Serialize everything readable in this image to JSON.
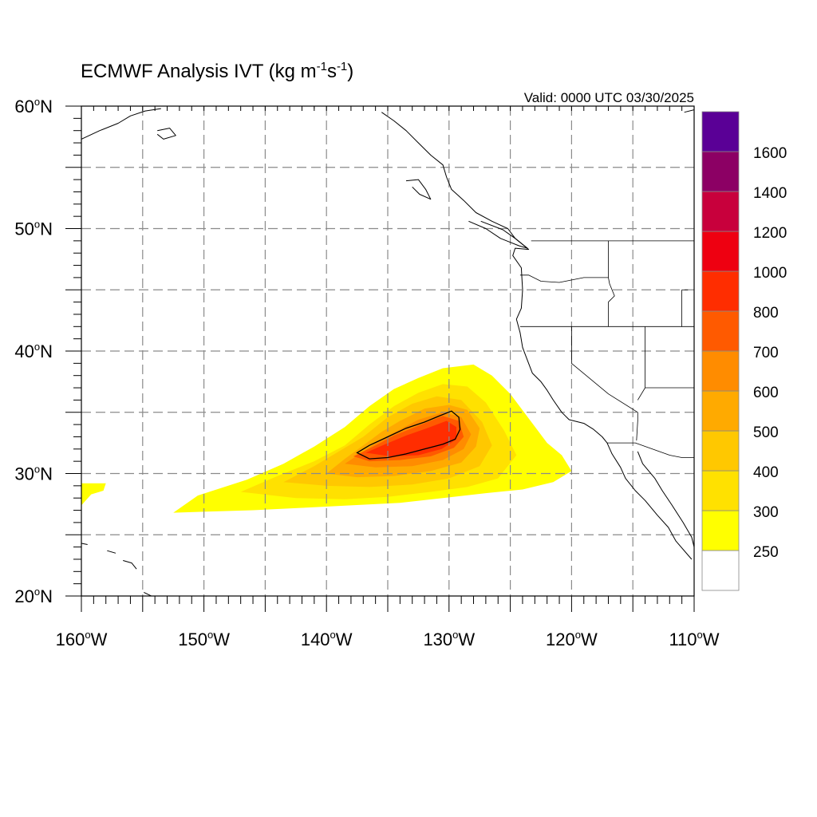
{
  "title": {
    "main": "ECMWF Analysis IVT (kg m",
    "sup1": "-1",
    "mid": "s",
    "sup2": "-1",
    "end": ")"
  },
  "valid_label": "Valid: 0000 UTC 03/30/2025",
  "colorbar": {
    "colors": [
      "#ffffff",
      "#ffff00",
      "#ffe100",
      "#ffc800",
      "#ffaa00",
      "#ff8c00",
      "#ff5a00",
      "#ff2d00",
      "#ee0011",
      "#c8003c",
      "#8c0064",
      "#5a0096"
    ],
    "labels": [
      "250",
      "300",
      "400",
      "500",
      "600",
      "700",
      "800",
      "1000",
      "1200",
      "1400",
      "1600"
    ]
  },
  "chart_data": {
    "type": "heatmap",
    "title": "ECMWF Analysis IVT (kg m-1 s-1)",
    "valid": "Valid: 0000 UTC 03/30/2025",
    "lon_range": [
      -160,
      -110
    ],
    "lat_range": [
      20,
      60
    ],
    "x_ticks": [
      -160,
      -150,
      -140,
      -130,
      -120,
      -110
    ],
    "x_tick_labels": [
      "160",
      "150",
      "140",
      "130",
      "120",
      "110"
    ],
    "x_suffix": "W",
    "y_ticks": [
      20,
      30,
      40,
      50,
      60
    ],
    "y_tick_labels": [
      "20",
      "30",
      "40",
      "50",
      "60"
    ],
    "y_suffix": "N",
    "grid": true,
    "grid_lons": [
      -155,
      -150,
      -145,
      -140,
      -135,
      -130,
      -125,
      -120,
      -115
    ],
    "grid_lats": [
      25,
      30,
      35,
      40,
      45,
      50,
      55
    ],
    "contour_levels": [
      250,
      300,
      400,
      500,
      600,
      700,
      800,
      1000,
      1200,
      1400,
      1600
    ],
    "ivt_field": [
      {
        "level": 250,
        "polygon": [
          [
            -152.5,
            26.8
          ],
          [
            -150.5,
            28.2
          ],
          [
            -146.5,
            29.5
          ],
          [
            -143.5,
            30.8
          ],
          [
            -141,
            32.2
          ],
          [
            -138.5,
            33.8
          ],
          [
            -136.5,
            35.5
          ],
          [
            -134.5,
            36.9
          ],
          [
            -132.5,
            37.8
          ],
          [
            -130.5,
            38.6
          ],
          [
            -128,
            38.9
          ],
          [
            -126.5,
            38.0
          ],
          [
            -125,
            36.5
          ],
          [
            -123.5,
            34.5
          ],
          [
            -122,
            32.5
          ],
          [
            -120.8,
            31.5
          ],
          [
            -120,
            30.2
          ],
          [
            -121.5,
            29.3
          ],
          [
            -124,
            28.7
          ],
          [
            -127,
            28.4
          ],
          [
            -130.5,
            28.0
          ],
          [
            -134,
            27.6
          ],
          [
            -138,
            27.4
          ],
          [
            -142,
            27.2
          ],
          [
            -146,
            27.0
          ],
          [
            -149.5,
            26.9
          ]
        ]
      },
      {
        "level": 250,
        "polygon": [
          [
            -160,
            29.2
          ],
          [
            -158,
            29.2
          ],
          [
            -158.2,
            28.6
          ],
          [
            -159.2,
            28.3
          ],
          [
            -160,
            27.4
          ]
        ]
      },
      {
        "level": 300,
        "polygon": [
          [
            -147,
            28.5
          ],
          [
            -144,
            29.8
          ],
          [
            -141,
            31.0
          ],
          [
            -138.5,
            32.3
          ],
          [
            -136.5,
            34.0
          ],
          [
            -134.5,
            35.5
          ],
          [
            -132.5,
            36.6
          ],
          [
            -130.5,
            37.3
          ],
          [
            -128.5,
            37.1
          ],
          [
            -127,
            35.8
          ],
          [
            -125.5,
            33.5
          ],
          [
            -124.5,
            31.5
          ],
          [
            -126,
            29.6
          ],
          [
            -128.5,
            28.9
          ],
          [
            -131.5,
            28.5
          ],
          [
            -135,
            28.1
          ],
          [
            -138.5,
            27.9
          ],
          [
            -142.5,
            28.0
          ]
        ]
      },
      {
        "level": 400,
        "polygon": [
          [
            -143.5,
            29.3
          ],
          [
            -141,
            30.6
          ],
          [
            -139,
            31.8
          ],
          [
            -137,
            33.0
          ],
          [
            -135,
            34.6
          ],
          [
            -133,
            35.7
          ],
          [
            -131,
            36.3
          ],
          [
            -129,
            36.0
          ],
          [
            -127.3,
            34.2
          ],
          [
            -126.5,
            32.3
          ],
          [
            -127.5,
            30.6
          ],
          [
            -130,
            29.6
          ],
          [
            -133,
            29.1
          ],
          [
            -136.5,
            28.9
          ],
          [
            -140,
            29.0
          ]
        ]
      },
      {
        "level": 500,
        "polygon": [
          [
            -140,
            30.0
          ],
          [
            -138.5,
            31.2
          ],
          [
            -137,
            32.3
          ],
          [
            -135.5,
            33.4
          ],
          [
            -134,
            34.3
          ],
          [
            -132,
            35.3
          ],
          [
            -130,
            35.6
          ],
          [
            -128.5,
            35.2
          ],
          [
            -127.5,
            33.7
          ],
          [
            -127.8,
            32.2
          ],
          [
            -129,
            30.9
          ],
          [
            -131.5,
            30.2
          ],
          [
            -134.5,
            29.8
          ],
          [
            -137.5,
            29.7
          ]
        ]
      },
      {
        "level": 600,
        "polygon": [
          [
            -138.5,
            30.8
          ],
          [
            -137,
            31.8
          ],
          [
            -135.5,
            32.8
          ],
          [
            -134,
            33.6
          ],
          [
            -132.5,
            34.4
          ],
          [
            -130.5,
            35.0
          ],
          [
            -129,
            34.6
          ],
          [
            -128.2,
            33.2
          ],
          [
            -128.8,
            32.0
          ],
          [
            -130.5,
            31.1
          ],
          [
            -133,
            30.6
          ],
          [
            -136,
            30.5
          ]
        ]
      },
      {
        "level": 700,
        "polygon": [
          [
            -137.8,
            31.4
          ],
          [
            -136,
            32.3
          ],
          [
            -134.5,
            33.1
          ],
          [
            -132.5,
            33.9
          ],
          [
            -130.5,
            34.7
          ],
          [
            -129.2,
            34.3
          ],
          [
            -128.8,
            33.0
          ],
          [
            -129.6,
            32.1
          ],
          [
            -131.5,
            31.4
          ],
          [
            -134,
            31.1
          ],
          [
            -136.5,
            31.0
          ]
        ]
      },
      {
        "level": 800,
        "polygon": [
          [
            -136.8,
            31.7
          ],
          [
            -135.2,
            32.4
          ],
          [
            -133.5,
            33.1
          ],
          [
            -131.8,
            33.7
          ],
          [
            -130.2,
            34.3
          ],
          [
            -129.4,
            33.8
          ],
          [
            -129.4,
            32.8
          ],
          [
            -130.6,
            32.0
          ],
          [
            -132.5,
            31.5
          ],
          [
            -134.8,
            31.4
          ]
        ]
      }
    ],
    "contour_line": {
      "level": 800,
      "polygon": [
        [
          -137.5,
          31.7
        ],
        [
          -136.5,
          32.3
        ],
        [
          -135,
          33.0
        ],
        [
          -133.5,
          33.7
        ],
        [
          -132,
          34.2
        ],
        [
          -130.8,
          34.7
        ],
        [
          -129.8,
          35.1
        ],
        [
          -129.2,
          34.6
        ],
        [
          -129.1,
          33.6
        ],
        [
          -129.5,
          32.8
        ],
        [
          -130.5,
          32.4
        ],
        [
          -132,
          32.0
        ],
        [
          -133.5,
          31.6
        ],
        [
          -135,
          31.3
        ],
        [
          -136.5,
          31.2
        ]
      ]
    },
    "coastlines": [
      [
        [
          -135.5,
          59.5
        ],
        [
          -134.5,
          58.8
        ],
        [
          -133.5,
          58.0
        ],
        [
          -132.5,
          57.0
        ],
        [
          -131.5,
          56.0
        ],
        [
          -130.5,
          55.2
        ],
        [
          -130.2,
          54.2
        ],
        [
          -129.8,
          53.2
        ],
        [
          -128.8,
          52.3
        ],
        [
          -127.8,
          51.3
        ],
        [
          -126.5,
          50.6
        ],
        [
          -125.2,
          50.0
        ],
        [
          -124.6,
          49.2
        ],
        [
          -123.5,
          48.3
        ],
        [
          -124.6,
          48.4
        ],
        [
          -124.8,
          47.8
        ],
        [
          -124.1,
          46.8
        ],
        [
          -124.0,
          45.0
        ],
        [
          -124.1,
          43.5
        ],
        [
          -124.5,
          42.6
        ],
        [
          -124.2,
          41.5
        ],
        [
          -124.0,
          40.3
        ],
        [
          -123.7,
          39.5
        ],
        [
          -123.2,
          38.2
        ],
        [
          -122.5,
          37.5
        ],
        [
          -122.0,
          36.8
        ],
        [
          -121.5,
          36.0
        ],
        [
          -120.8,
          35.0
        ],
        [
          -120.2,
          34.4
        ],
        [
          -119.0,
          34.1
        ],
        [
          -118.2,
          33.6
        ],
        [
          -117.5,
          33.0
        ],
        [
          -117.1,
          32.5
        ],
        [
          -116.7,
          31.6
        ],
        [
          -116.0,
          30.5
        ],
        [
          -115.6,
          29.6
        ],
        [
          -114.8,
          28.6
        ],
        [
          -114.0,
          27.8
        ],
        [
          -113.0,
          26.6
        ],
        [
          -112.1,
          25.6
        ],
        [
          -111.5,
          24.5
        ],
        [
          -110.2,
          23.0
        ]
      ],
      [
        [
          -114.6,
          31.8
        ],
        [
          -114.2,
          30.8
        ],
        [
          -113.2,
          29.6
        ],
        [
          -112.6,
          28.6
        ],
        [
          -111.8,
          27.4
        ],
        [
          -110.9,
          26.0
        ],
        [
          -110.2,
          24.8
        ],
        [
          -110,
          24.0
        ]
      ],
      [
        [
          -160,
          57.3
        ],
        [
          -158.5,
          58.0
        ],
        [
          -157,
          58.6
        ],
        [
          -156,
          59.2
        ],
        [
          -154.8,
          59.6
        ],
        [
          -153.5,
          59.8
        ]
      ],
      [
        [
          -153.8,
          58.0
        ],
        [
          -152.8,
          58.2
        ],
        [
          -152.3,
          57.6
        ],
        [
          -153.3,
          57.3
        ],
        [
          -153.8,
          57.7
        ]
      ],
      [
        [
          -133.5,
          53.9
        ],
        [
          -132.5,
          54.0
        ],
        [
          -131.9,
          53.2
        ],
        [
          -131.5,
          52.4
        ],
        [
          -132.4,
          52.8
        ],
        [
          -133.0,
          53.4
        ]
      ],
      [
        [
          -128.4,
          50.6
        ],
        [
          -127.0,
          50.0
        ],
        [
          -125.8,
          49.2
        ],
        [
          -124.3,
          48.6
        ],
        [
          -123.6,
          48.4
        ],
        [
          -124.6,
          49.2
        ],
        [
          -125.6,
          49.9
        ],
        [
          -127.4,
          50.6
        ]
      ],
      [
        [
          -160,
          24.3
        ],
        [
          -159.5,
          24.2
        ]
      ],
      [
        [
          -157.9,
          23.7
        ],
        [
          -157.2,
          23.5
        ]
      ],
      [
        [
          -156.6,
          22.9
        ],
        [
          -155.9,
          22.7
        ],
        [
          -155.5,
          22.2
        ]
      ],
      [
        [
          -154.9,
          20.3
        ],
        [
          -154.3,
          20.0
        ]
      ],
      [
        [
          -110.8,
          59.5
        ],
        [
          -110,
          59.7
        ]
      ]
    ],
    "borders": [
      [
        [
          -141,
          60
        ],
        [
          -141,
          59.8
        ]
      ],
      [
        [
          -123.3,
          49.0
        ],
        [
          -110,
          49.0
        ]
      ],
      [
        [
          -117.0,
          49.0
        ],
        [
          -117.0,
          46.0
        ],
        [
          -116.9,
          45.5
        ],
        [
          -116.5,
          44.5
        ],
        [
          -117.0,
          44.0
        ],
        [
          -117.0,
          42.0
        ]
      ],
      [
        [
          -124.2,
          46.2
        ],
        [
          -123.5,
          46.2
        ],
        [
          -122.5,
          45.7
        ],
        [
          -121.0,
          45.6
        ],
        [
          -119.0,
          46.0
        ],
        [
          -117.0,
          46.0
        ]
      ],
      [
        [
          -124.2,
          42.0
        ],
        [
          -111.0,
          42.0
        ]
      ],
      [
        [
          -120.0,
          42.0
        ],
        [
          -120.0,
          39.0
        ],
        [
          -117.0,
          36.5
        ],
        [
          -114.6,
          35.0
        ],
        [
          -114.6,
          34.3
        ],
        [
          -114.7,
          32.7
        ]
      ],
      [
        [
          -114.0,
          42.0
        ],
        [
          -114.0,
          37.0
        ],
        [
          -114.6,
          36.0
        ]
      ],
      [
        [
          -114.0,
          37.0
        ],
        [
          -110,
          37.0
        ]
      ],
      [
        [
          -117.1,
          32.5
        ],
        [
          -114.8,
          32.5
        ],
        [
          -112.0,
          31.5
        ],
        [
          -111.0,
          31.3
        ],
        [
          -110,
          31.3
        ]
      ],
      [
        [
          -111.0,
          45.0
        ],
        [
          -111.0,
          42.0
        ],
        [
          -110,
          42.0
        ]
      ],
      [
        [
          -110.5,
          45.0
        ],
        [
          -111.0,
          45.0
        ]
      ]
    ]
  }
}
